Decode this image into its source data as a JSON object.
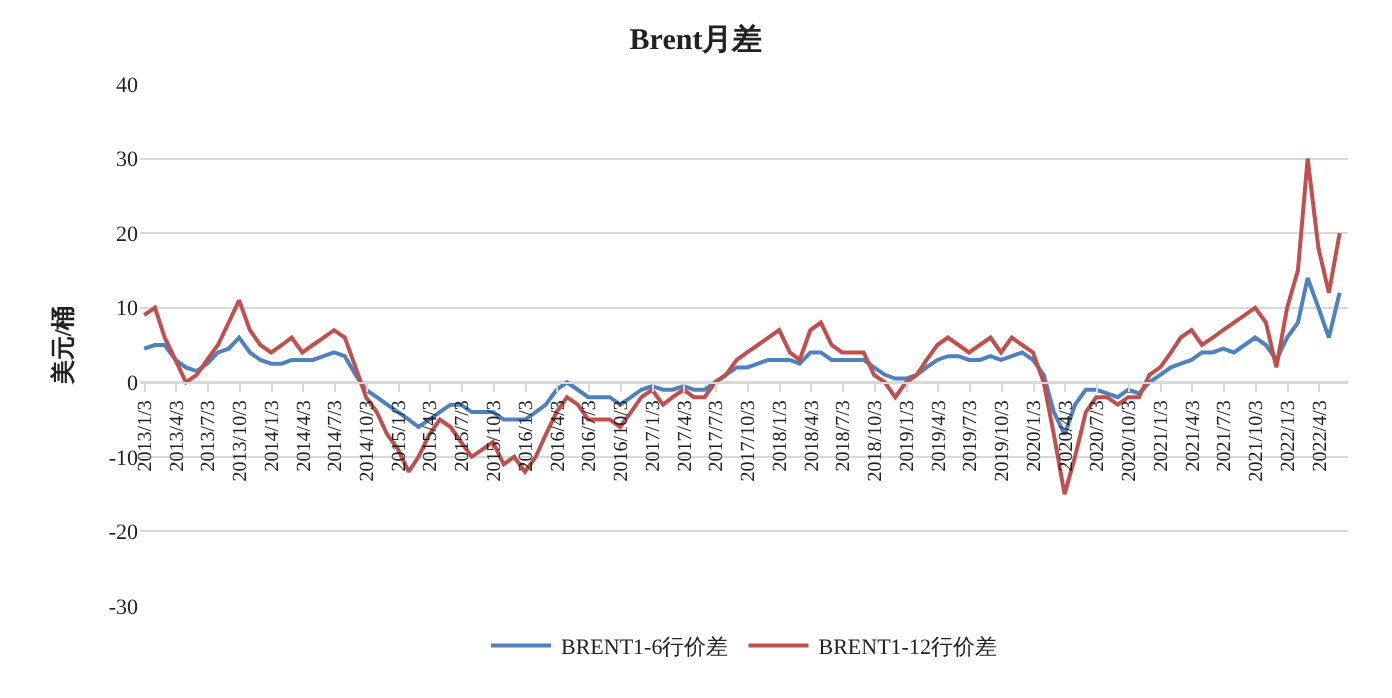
{
  "chart_data": {
    "type": "line",
    "title": "Brent月差",
    "ylabel": "美元/桶",
    "x": [
      "2013-01",
      "2013-02",
      "2013-03",
      "2013-04",
      "2013-05",
      "2013-06",
      "2013-07",
      "2013-08",
      "2013-09",
      "2013-10",
      "2013-11",
      "2013-12",
      "2014-01",
      "2014-02",
      "2014-03",
      "2014-04",
      "2014-05",
      "2014-06",
      "2014-07",
      "2014-08",
      "2014-09",
      "2014-10",
      "2014-11",
      "2014-12",
      "2015-01",
      "2015-02",
      "2015-03",
      "2015-04",
      "2015-05",
      "2015-06",
      "2015-07",
      "2015-08",
      "2015-09",
      "2015-10",
      "2015-11",
      "2015-12",
      "2016-01",
      "2016-02",
      "2016-03",
      "2016-04",
      "2016-05",
      "2016-06",
      "2016-07",
      "2016-08",
      "2016-09",
      "2016-10",
      "2016-11",
      "2016-12",
      "2017-01",
      "2017-02",
      "2017-03",
      "2017-04",
      "2017-05",
      "2017-06",
      "2017-07",
      "2017-08",
      "2017-09",
      "2017-10",
      "2017-11",
      "2017-12",
      "2018-01",
      "2018-02",
      "2018-03",
      "2018-04",
      "2018-05",
      "2018-06",
      "2018-07",
      "2018-08",
      "2018-09",
      "2018-10",
      "2018-11",
      "2018-12",
      "2019-01",
      "2019-02",
      "2019-03",
      "2019-04",
      "2019-05",
      "2019-06",
      "2019-07",
      "2019-08",
      "2019-09",
      "2019-10",
      "2019-11",
      "2019-12",
      "2020-01",
      "2020-02",
      "2020-03",
      "2020-04",
      "2020-05",
      "2020-06",
      "2020-07",
      "2020-08",
      "2020-09",
      "2020-10",
      "2020-11",
      "2020-12",
      "2021-01",
      "2021-02",
      "2021-03",
      "2021-04",
      "2021-05",
      "2021-06",
      "2021-07",
      "2021-08",
      "2021-09",
      "2021-10",
      "2021-11",
      "2021-12",
      "2022-01",
      "2022-02",
      "2022-03",
      "2022-04",
      "2022-05",
      "2022-06"
    ],
    "series": [
      {
        "name": "BRENT1-6行价差",
        "color": "#4f81bd",
        "values": [
          4.5,
          5,
          5,
          3,
          2,
          1.5,
          2.5,
          4,
          4.5,
          6,
          4,
          3,
          2.5,
          2.5,
          3,
          3,
          3,
          3.5,
          4,
          3.5,
          1,
          -1,
          -2,
          -3,
          -4,
          -5,
          -6,
          -5,
          -4,
          -3,
          -3,
          -4,
          -4,
          -4,
          -5,
          -5,
          -5,
          -4,
          -3,
          -1,
          0,
          -1,
          -2,
          -2,
          -2,
          -3,
          -2,
          -1,
          -0.5,
          -1,
          -1,
          -0.5,
          -1,
          -1,
          0,
          1,
          2,
          2,
          2.5,
          3,
          3,
          3,
          2.5,
          4,
          4,
          3,
          3,
          3,
          3,
          2,
          1,
          0.5,
          0.5,
          1,
          2,
          3,
          3.5,
          3.5,
          3,
          3,
          3.5,
          3,
          3.5,
          4,
          3,
          1,
          -4,
          -7,
          -3,
          -1,
          -1,
          -1.5,
          -2,
          -1,
          -1.5,
          0,
          1,
          2,
          2.5,
          3,
          4,
          4,
          4.5,
          4,
          5,
          6,
          5,
          3,
          6,
          8,
          14,
          10,
          6,
          12
        ]
      },
      {
        "name": "BRENT1-12行价差",
        "color": "#c0504d",
        "values": [
          9,
          10,
          6,
          3,
          0,
          1,
          3,
          5,
          8,
          11,
          7,
          5,
          4,
          5,
          6,
          4,
          5,
          6,
          7,
          6,
          2,
          -2,
          -4,
          -7,
          -9,
          -12,
          -10,
          -7,
          -5,
          -6,
          -8,
          -10,
          -9,
          -8,
          -11,
          -10,
          -12,
          -10,
          -7,
          -4,
          -2,
          -3,
          -5,
          -5,
          -5,
          -6,
          -4,
          -2,
          -1,
          -3,
          -2,
          -1,
          -2,
          -2,
          0,
          1,
          3,
          4,
          5,
          6,
          7,
          4,
          3,
          7,
          8,
          5,
          4,
          4,
          4,
          1,
          0,
          -2,
          0,
          1,
          3,
          5,
          6,
          5,
          4,
          5,
          6,
          4,
          6,
          5,
          4,
          0,
          -7,
          -15,
          -10,
          -4,
          -2,
          -2,
          -3,
          -2,
          -2,
          1,
          2,
          4,
          6,
          7,
          5,
          6,
          7,
          8,
          9,
          10,
          8,
          2,
          10,
          15,
          30,
          18,
          12,
          20
        ]
      }
    ],
    "ylim": [
      -30,
      40
    ],
    "yticks": [
      -30,
      -20,
      -10,
      0,
      10,
      20,
      30,
      40
    ],
    "xlim": [
      "2012-12-20",
      "2022-06-25"
    ],
    "xticks": [
      {
        "value": "2013-01-03",
        "label": "2013/1/3"
      },
      {
        "value": "2013-04-03",
        "label": "2013/4/3"
      },
      {
        "value": "2013-07-03",
        "label": "2013/7/3"
      },
      {
        "value": "2013-10-03",
        "label": "2013/10/3"
      },
      {
        "value": "2014-01-03",
        "label": "2014/1/3"
      },
      {
        "value": "2014-04-03",
        "label": "2014/4/3"
      },
      {
        "value": "2014-07-03",
        "label": "2014/7/3"
      },
      {
        "value": "2014-10-03",
        "label": "2014/10/3"
      },
      {
        "value": "2015-01-03",
        "label": "2015/1/3"
      },
      {
        "value": "2015-04-03",
        "label": "2015/4/3"
      },
      {
        "value": "2015-07-03",
        "label": "2015/7/3"
      },
      {
        "value": "2015-10-03",
        "label": "2015/10/3"
      },
      {
        "value": "2016-01-03",
        "label": "2016/1/3"
      },
      {
        "value": "2016-04-03",
        "label": "2016/4/3"
      },
      {
        "value": "2016-07-03",
        "label": "2016/7/3"
      },
      {
        "value": "2016-10-03",
        "label": "2016/10/3"
      },
      {
        "value": "2017-01-03",
        "label": "2017/1/3"
      },
      {
        "value": "2017-04-03",
        "label": "2017/4/3"
      },
      {
        "value": "2017-07-03",
        "label": "2017/7/3"
      },
      {
        "value": "2017-10-03",
        "label": "2017/10/3"
      },
      {
        "value": "2018-01-03",
        "label": "2018/1/3"
      },
      {
        "value": "2018-04-03",
        "label": "2018/4/3"
      },
      {
        "value": "2018-07-03",
        "label": "2018/7/3"
      },
      {
        "value": "2018-10-03",
        "label": "2018/10/3"
      },
      {
        "value": "2019-01-03",
        "label": "2019/1/3"
      },
      {
        "value": "2019-04-03",
        "label": "2019/4/3"
      },
      {
        "value": "2019-07-03",
        "label": "2019/7/3"
      },
      {
        "value": "2019-10-03",
        "label": "2019/10/3"
      },
      {
        "value": "2020-01-03",
        "label": "2020/1/3"
      },
      {
        "value": "2020-04-03",
        "label": "2020/4/3"
      },
      {
        "value": "2020-07-03",
        "label": "2020/7/3"
      },
      {
        "value": "2020-10-03",
        "label": "2020/10/3"
      },
      {
        "value": "2021-01-03",
        "label": "2021/1/3"
      },
      {
        "value": "2021-04-03",
        "label": "2021/4/3"
      },
      {
        "value": "2021-07-03",
        "label": "2021/7/3"
      },
      {
        "value": "2021-10-03",
        "label": "2021/10/3"
      },
      {
        "value": "2022-01-03",
        "label": "2022/1/3"
      },
      {
        "value": "2022-04-03",
        "label": "2022/4/3"
      }
    ],
    "grid": "y",
    "legend": "bottom",
    "marker": "none",
    "line_style": "solid"
  }
}
